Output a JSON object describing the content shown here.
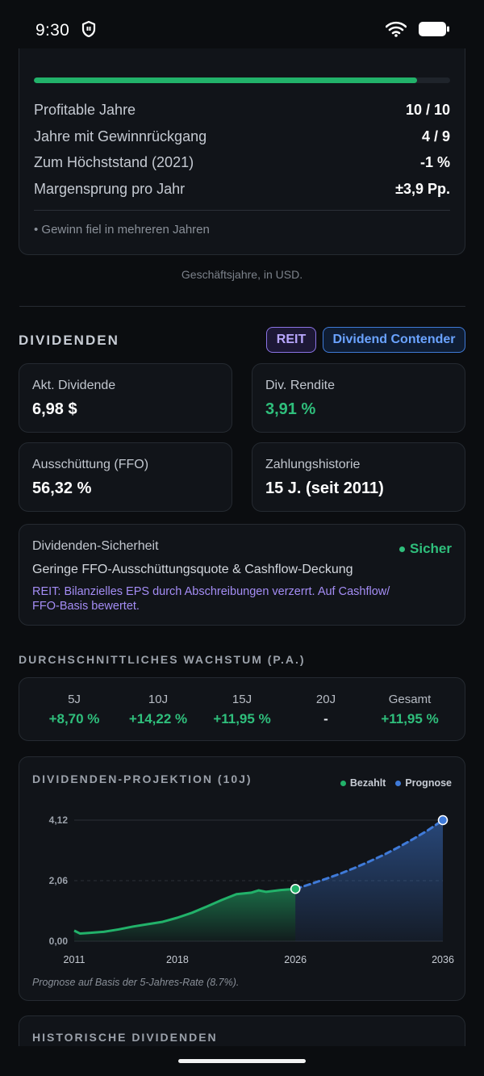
{
  "status_bar": {
    "time": "9:30"
  },
  "profitability": {
    "progress_fraction": 0.92,
    "rows": [
      {
        "label": "Profitable Jahre",
        "value": "10 / 10"
      },
      {
        "label": "Jahre mit Gewinnrückgang",
        "value": "4 / 9"
      },
      {
        "label": "Zum Höchststand (2021)",
        "value": "-1 %"
      },
      {
        "label": "Margensprung pro Jahr",
        "value": "±3,9 Pp."
      }
    ],
    "note": "• Gewinn fiel in mehreren Jahren"
  },
  "fiscal_note": "Geschäftsjahre, in USD.",
  "dividends": {
    "title": "DIVIDENDEN",
    "badges": {
      "reit": "REIT",
      "contender": "Dividend Contender"
    },
    "metrics": [
      {
        "label": "Akt. Dividende",
        "value": "6,98 $"
      },
      {
        "label": "Div. Rendite",
        "value": "3,91 %"
      },
      {
        "label": "Ausschüttung (FFO)",
        "value": "56,32 %"
      },
      {
        "label": "Zahlungshistorie",
        "value": "15 J. (seit 2011)"
      }
    ],
    "safety": {
      "title": "Dividenden-Sicherheit",
      "status": "Sicher",
      "description": "Geringe FFO-Ausschüttungsquote & Cashflow-Deckung",
      "reit_note_line1": "REIT: Bilanzielles EPS durch Abschreibungen verzerrt. Auf Cashflow/",
      "reit_note_line2": "FFO-Basis bewertet."
    }
  },
  "growth": {
    "title": "DURCHSCHNITTLICHES WACHSTUM (P.A.)",
    "columns": [
      {
        "label": "5J",
        "value": "+8,70 %"
      },
      {
        "label": "10J",
        "value": "+14,22 %"
      },
      {
        "label": "15J",
        "value": "+11,95 %"
      },
      {
        "label": "20J",
        "value": "-"
      },
      {
        "label": "Gesamt",
        "value": "+11,95 %"
      }
    ]
  },
  "projection": {
    "title": "DIVIDENDEN-PROJEKTION (10J)",
    "legend_paid": "Bezahlt",
    "legend_forecast": "Prognose",
    "note": "Prognose auf Basis der 5-Jahres-Rate (8.7%).",
    "colors": {
      "paid": "#22b26a",
      "forecast": "#3f7ad8"
    }
  },
  "chart_data": {
    "type": "area",
    "y_ticks": [
      "0,00",
      "2,06",
      "4,12"
    ],
    "x_ticks": [
      "2011",
      "2018",
      "2026",
      "2036"
    ],
    "ylim": [
      0,
      4.12
    ],
    "xlim": [
      2011,
      2036
    ],
    "series": [
      {
        "name": "Bezahlt",
        "x": [
          2011,
          2011.4,
          2012,
          2013,
          2014,
          2015,
          2016,
          2017,
          2018,
          2019,
          2020,
          2021,
          2022,
          2023,
          2023.5,
          2024,
          2025,
          2026
        ],
        "values": [
          0.36,
          0.26,
          0.28,
          0.32,
          0.4,
          0.5,
          0.58,
          0.66,
          0.8,
          0.97,
          1.18,
          1.4,
          1.6,
          1.65,
          1.73,
          1.68,
          1.74,
          1.78
        ]
      },
      {
        "name": "Prognose",
        "x": [
          2026,
          2027,
          2028,
          2029,
          2030,
          2031,
          2032,
          2033,
          2034,
          2035,
          2036
        ],
        "values": [
          1.78,
          1.94,
          2.11,
          2.29,
          2.49,
          2.71,
          2.94,
          3.2,
          3.48,
          3.78,
          4.12
        ]
      }
    ]
  },
  "history": {
    "title": "HISTORISCHE DIVIDENDEN"
  }
}
